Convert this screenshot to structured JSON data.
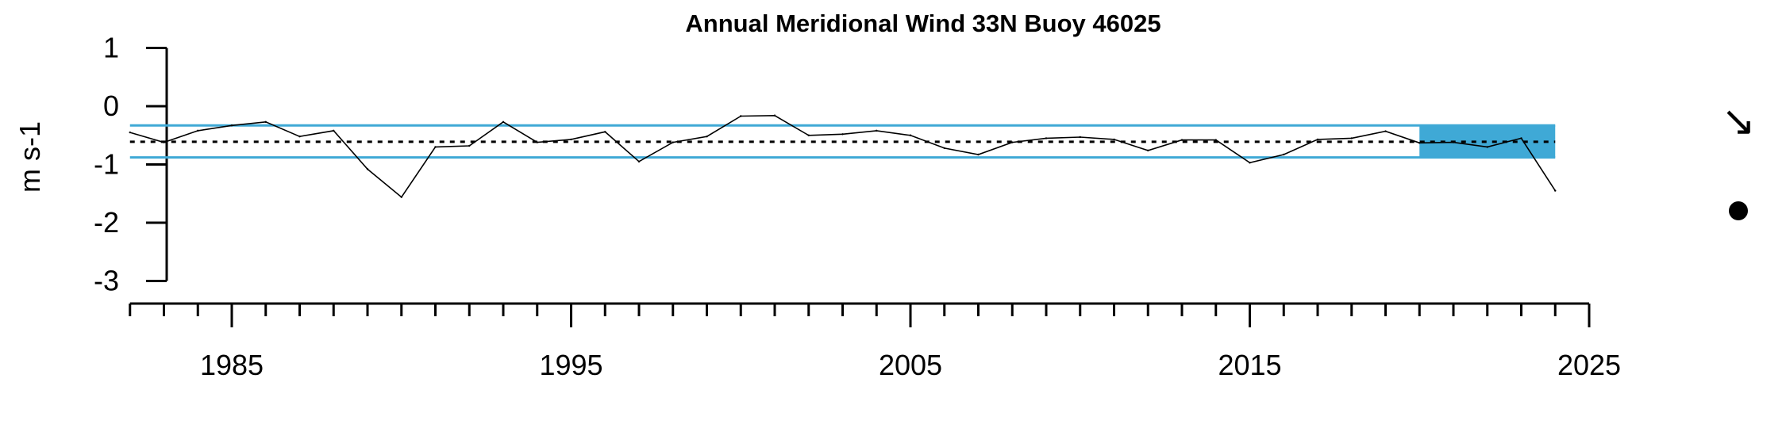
{
  "chart_data": {
    "type": "line",
    "title": "Annual Meridional Wind 33N Buoy 46025",
    "ylabel": "m s-1",
    "xlabel": "",
    "xlim": [
      1982,
      2025
    ],
    "ylim": [
      -3,
      1
    ],
    "yticks": [
      1,
      0,
      -1,
      -2,
      -3
    ],
    "xticks_major": [
      1985,
      1995,
      2005,
      2015,
      2025
    ],
    "x": [
      1982,
      1983,
      1984,
      1985,
      1986,
      1987,
      1988,
      1989,
      1990,
      1991,
      1992,
      1993,
      1994,
      1995,
      1996,
      1997,
      1998,
      1999,
      2000,
      2001,
      2002,
      2003,
      2004,
      2005,
      2006,
      2007,
      2008,
      2009,
      2010,
      2011,
      2012,
      2013,
      2014,
      2015,
      2016,
      2017,
      2018,
      2019,
      2020,
      2021,
      2022,
      2023,
      2024
    ],
    "series": [
      {
        "values": [
          -0.45,
          -0.62,
          -0.42,
          -0.33,
          -0.27,
          -0.52,
          -0.42,
          -1.08,
          -1.56,
          -0.7,
          -0.68,
          -0.27,
          -0.62,
          -0.57,
          -0.44,
          -0.95,
          -0.62,
          -0.52,
          -0.17,
          -0.16,
          -0.5,
          -0.48,
          -0.42,
          -0.5,
          -0.72,
          -0.83,
          -0.62,
          -0.55,
          -0.53,
          -0.57,
          -0.76,
          -0.58,
          -0.58,
          -0.97,
          -0.83,
          -0.57,
          -0.55,
          -0.43,
          -0.63,
          -0.62,
          -0.7,
          -0.55,
          -1.45
        ]
      }
    ],
    "mean": -0.61,
    "band_upper": -0.33,
    "band_lower": -0.88,
    "recent_window": {
      "x_start": 2020,
      "x_end": 2024,
      "upper": -0.33,
      "lower": -0.88
    },
    "trend_symbol": "↘",
    "status_marker": "filled-circle",
    "colors": {
      "band": "#3fa9d6",
      "line": "#000000",
      "mean": "#000000",
      "marker": "#000000"
    },
    "grid": false,
    "legend": "none"
  }
}
